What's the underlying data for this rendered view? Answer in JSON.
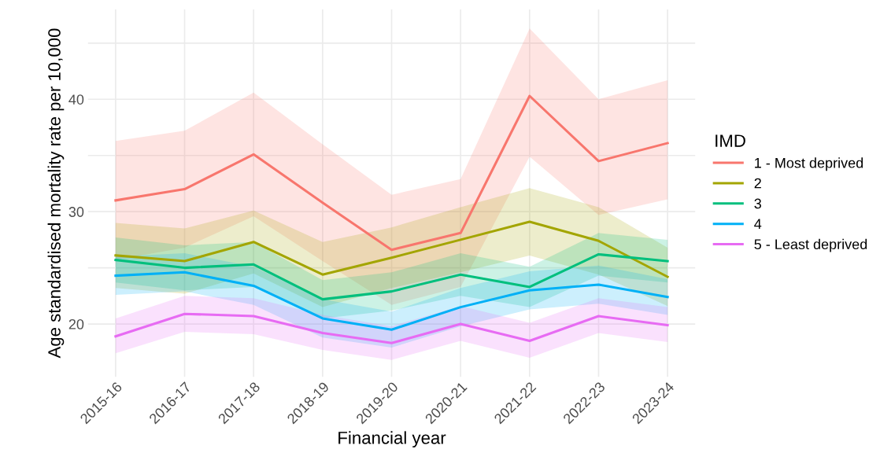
{
  "chart_data": {
    "type": "line",
    "xlabel": "Financial year",
    "ylabel": "Age standardised mortality rate per 10,000",
    "legend_title": "IMD",
    "legend": "right",
    "grid": true,
    "line_style": "solid",
    "categories": [
      "2015-16",
      "2016-17",
      "2017-18",
      "2018-19",
      "2019-20",
      "2020-21",
      "2021-22",
      "2022-23",
      "2023-24"
    ],
    "ylim": [
      15.3,
      48
    ],
    "yticks": [
      20,
      {
        "value": 25,
        "label": null
      },
      30,
      {
        "value": 35,
        "label": null
      },
      40,
      {
        "value": 45,
        "label": null
      }
    ],
    "series": [
      {
        "name": "1 - Most deprived",
        "color": "#f8766d",
        "values": [
          31.0,
          32.0,
          35.1,
          30.8,
          26.6,
          28.1,
          40.3,
          34.5,
          36.1
        ],
        "lower": [
          25.7,
          26.8,
          29.6,
          25.6,
          21.7,
          23.3,
          34.9,
          29.7,
          31.1
        ],
        "upper": [
          36.3,
          37.2,
          40.6,
          36.0,
          31.5,
          32.9,
          46.3,
          40.0,
          41.7
        ]
      },
      {
        "name": "2",
        "color": "#a3a500",
        "values": [
          26.1,
          25.6,
          27.3,
          24.4,
          25.9,
          27.5,
          29.1,
          27.4,
          24.2
        ],
        "lower": [
          23.2,
          22.7,
          24.5,
          21.5,
          23.2,
          24.6,
          26.1,
          24.4,
          21.6
        ],
        "upper": [
          29.0,
          28.5,
          30.1,
          27.3,
          28.6,
          30.4,
          32.1,
          30.4,
          26.8
        ]
      },
      {
        "name": "3",
        "color": "#00bf7d",
        "values": [
          25.7,
          25.0,
          25.3,
          22.2,
          22.9,
          24.4,
          23.3,
          26.2,
          25.6
        ],
        "lower": [
          23.7,
          23.0,
          23.3,
          20.5,
          21.2,
          22.5,
          21.5,
          24.3,
          23.7
        ],
        "upper": [
          27.7,
          27.0,
          27.3,
          23.9,
          24.6,
          26.3,
          25.1,
          28.1,
          27.5
        ]
      },
      {
        "name": "4",
        "color": "#00b0f6",
        "values": [
          24.3,
          24.6,
          23.4,
          20.5,
          19.5,
          21.5,
          23.0,
          23.5,
          22.4
        ],
        "lower": [
          22.6,
          22.9,
          21.7,
          18.8,
          17.9,
          19.8,
          21.3,
          21.8,
          20.8
        ],
        "upper": [
          26.0,
          26.3,
          25.1,
          22.2,
          21.1,
          23.2,
          24.7,
          25.2,
          24.0
        ]
      },
      {
        "name": "5 - Least deprived",
        "color": "#e76bf3",
        "values": [
          18.9,
          20.9,
          20.7,
          19.2,
          18.3,
          20.0,
          18.5,
          20.7,
          19.9
        ],
        "lower": [
          17.4,
          19.3,
          19.1,
          17.7,
          16.8,
          18.5,
          17.0,
          19.2,
          18.4
        ],
        "upper": [
          20.5,
          22.5,
          22.3,
          20.8,
          19.8,
          21.6,
          20.1,
          22.3,
          21.5
        ]
      }
    ]
  }
}
